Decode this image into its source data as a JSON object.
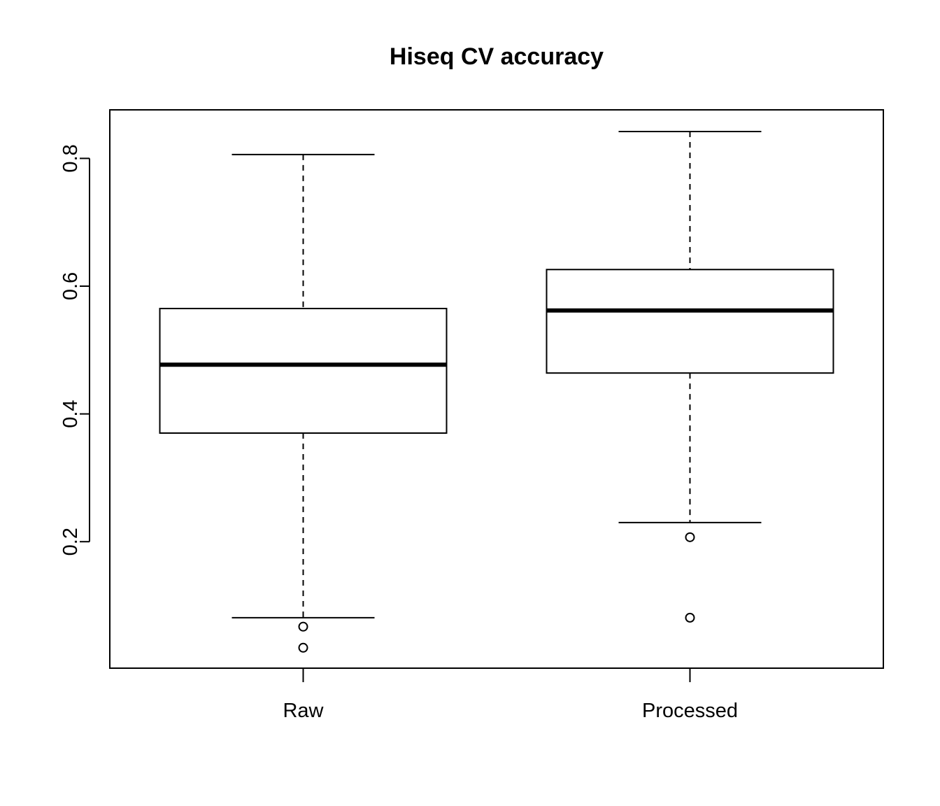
{
  "chart_data": {
    "type": "box",
    "title": "Hiseq CV accuracy",
    "xlabel": "",
    "ylabel": "",
    "ylim": [
      0.002,
      0.876
    ],
    "yticks": [
      0.2,
      0.4,
      0.6,
      0.8
    ],
    "ytick_labels": [
      "0.2",
      "0.4",
      "0.6",
      "0.8"
    ],
    "grid": false,
    "legend": "none",
    "categories": [
      "Raw",
      "Processed"
    ],
    "boxes": [
      {
        "category": "Raw",
        "whisker_low": 0.081,
        "q1": 0.37,
        "median": 0.477,
        "q3": 0.565,
        "whisker_high": 0.806,
        "outliers": [
          0.067,
          0.034
        ]
      },
      {
        "category": "Processed",
        "whisker_low": 0.23,
        "q1": 0.464,
        "median": 0.562,
        "q3": 0.626,
        "whisker_high": 0.842,
        "outliers": [
          0.207,
          0.081
        ]
      }
    ]
  }
}
